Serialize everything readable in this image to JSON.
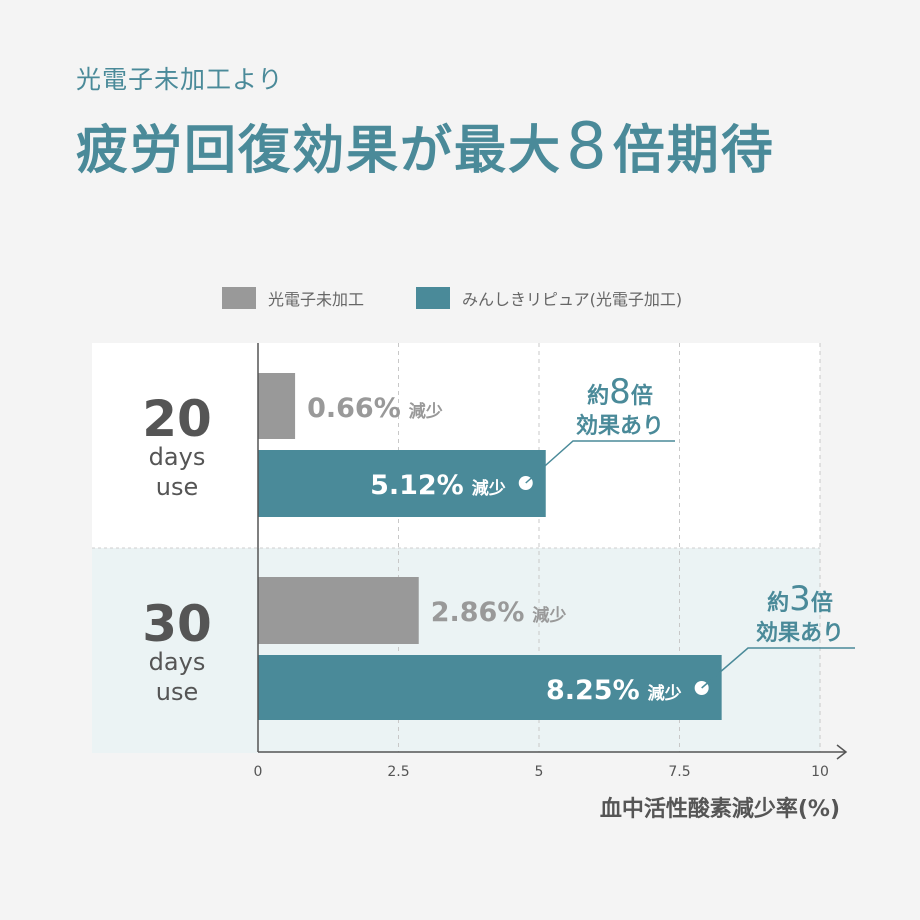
{
  "header": {
    "subtitle": "光電子未加工より",
    "title_part1": "疲労回復効果が最大",
    "title_number": "8",
    "title_part2": "倍期待"
  },
  "colors": {
    "accent": "#4a8a99",
    "gray_bar": "#999999",
    "row2_bg": "#ebf3f4",
    "row1_bg": "#ffffff"
  },
  "chart_data": {
    "type": "bar",
    "orientation": "horizontal",
    "categories": [
      {
        "number": "20",
        "line1": "days",
        "line2": "use"
      },
      {
        "number": "30",
        "line1": "days",
        "line2": "use"
      }
    ],
    "series": [
      {
        "name": "光電子未加工",
        "color": "#999999",
        "values": [
          0.66,
          2.86
        ],
        "labels": [
          "0.66%",
          "2.86%"
        ]
      },
      {
        "name": "みんしきリピュア(光電子加工)",
        "color": "#4a8a99",
        "values": [
          5.12,
          8.25
        ],
        "labels": [
          "5.12%",
          "8.25%"
        ]
      }
    ],
    "value_suffix": "減少",
    "annotations": [
      {
        "prefix": "約",
        "number": "8",
        "suffix": "倍",
        "line2": "効果あり"
      },
      {
        "prefix": "約",
        "number": "3",
        "suffix": "倍",
        "line2": "効果あり"
      }
    ],
    "xlim": [
      0,
      10
    ],
    "xticks": [
      "0",
      "2.5",
      "5",
      "7.5",
      "10"
    ],
    "xtick_values": [
      0,
      2.5,
      5,
      7.5,
      10
    ],
    "xlabel": "血中活性酸素減少率(%)",
    "grid": true,
    "legend_position": "top"
  }
}
